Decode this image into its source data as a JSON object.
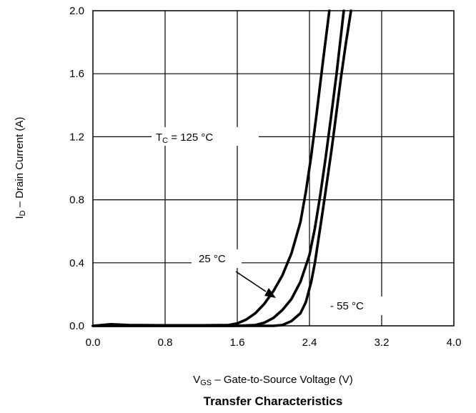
{
  "chart_data": {
    "type": "line",
    "title": "Transfer Characteristics",
    "xlabel": {
      "main": "V",
      "sub": "GS",
      "rest": " – Gate-to-Source Voltage (V)"
    },
    "ylabel": {
      "main": "I",
      "sub": "D",
      "rest": " – Drain Current (A)"
    },
    "xlim": [
      0,
      4.0
    ],
    "ylim": [
      0,
      2.0
    ],
    "grid": true,
    "x_ticks": [
      "0.0",
      "0.8",
      "1.6",
      "2.4",
      "3.2",
      "4.0"
    ],
    "y_ticks": [
      "0.0",
      "0.4",
      "0.8",
      "1.2",
      "1.6",
      "2.0"
    ],
    "series": [
      {
        "name": "TC = 125 °C",
        "x": [
          0.0,
          0.2,
          0.4,
          0.8,
          1.2,
          1.5,
          1.6,
          1.7,
          1.8,
          1.9,
          2.0,
          2.1,
          2.2,
          2.3,
          2.36,
          2.42,
          2.48,
          2.55,
          2.62
        ],
        "y": [
          0.0,
          0.01,
          0.005,
          0.003,
          0.003,
          0.005,
          0.015,
          0.04,
          0.08,
          0.14,
          0.22,
          0.32,
          0.46,
          0.66,
          0.85,
          1.08,
          1.35,
          1.68,
          2.0
        ]
      },
      {
        "name": "25 °C",
        "x": [
          0.0,
          0.8,
          1.6,
          1.8,
          1.9,
          2.0,
          2.1,
          2.2,
          2.3,
          2.4,
          2.46,
          2.52,
          2.58,
          2.64,
          2.7,
          2.78
        ],
        "y": [
          0.0,
          0.0,
          0.0,
          0.005,
          0.02,
          0.05,
          0.1,
          0.17,
          0.28,
          0.45,
          0.62,
          0.83,
          1.07,
          1.33,
          1.6,
          2.0
        ]
      },
      {
        "name": "- 55 °C",
        "x": [
          0.0,
          0.8,
          1.6,
          2.0,
          2.1,
          2.2,
          2.3,
          2.36,
          2.42,
          2.46,
          2.5,
          2.55,
          2.6,
          2.65,
          2.7,
          2.75,
          2.8,
          2.86
        ],
        "y": [
          0.0,
          0.0,
          0.0,
          0.0,
          0.005,
          0.03,
          0.08,
          0.15,
          0.28,
          0.4,
          0.55,
          0.74,
          0.94,
          1.14,
          1.36,
          1.58,
          1.78,
          2.0
        ]
      }
    ],
    "annotations": {
      "t125": {
        "main": "T",
        "sub": "C",
        "rest": " = 125 °C"
      },
      "t25": "25 °C",
      "tm55": "- 55 °C"
    }
  }
}
